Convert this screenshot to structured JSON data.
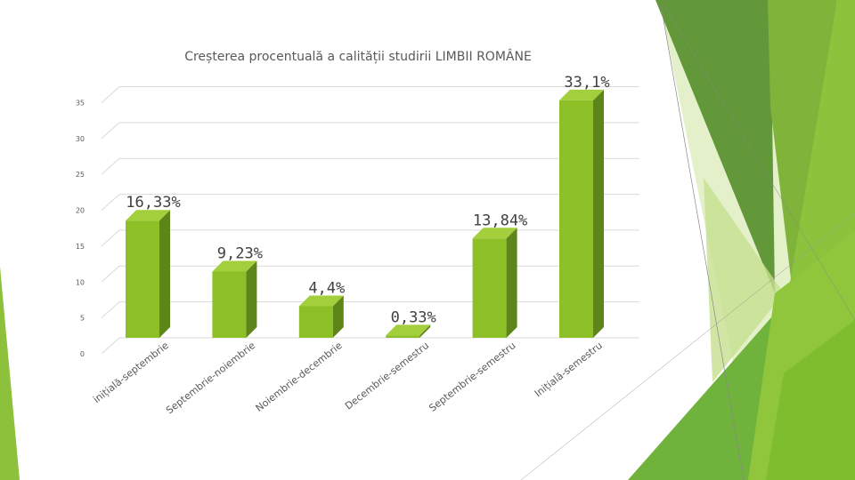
{
  "colors": {
    "bar_front": "#8dc026",
    "bar_side": "#5d8519",
    "bar_top": "#a4cf3c",
    "grid": "#d9d9d9",
    "text": "#595959",
    "label": "#404040"
  },
  "chart_data": {
    "type": "bar",
    "title": "Creșterea procentuală a calității studirii LIMBII ROMÂNE",
    "categories": [
      "inițială-septembrie",
      "Septembrie-noiembrie",
      "Noiembrie-decembrie",
      "Decembrie-semestru",
      "Septembrie-semestru",
      "Inițială-semestru"
    ],
    "values": [
      16.33,
      9.23,
      4.4,
      0.33,
      13.84,
      33.1
    ],
    "data_labels": [
      "16,33%",
      "9,23%",
      "4,4%",
      "0,33%",
      "13,84%",
      "33,1%"
    ],
    "ylim": [
      0,
      35
    ],
    "yticks": [
      "0",
      "5",
      "10",
      "15",
      "20",
      "25",
      "30",
      "35"
    ],
    "ytick_values": [
      0,
      5,
      10,
      15,
      20,
      25,
      30,
      35
    ],
    "xlabel": "",
    "ylabel": "",
    "grid": true,
    "style": "3d-column"
  }
}
